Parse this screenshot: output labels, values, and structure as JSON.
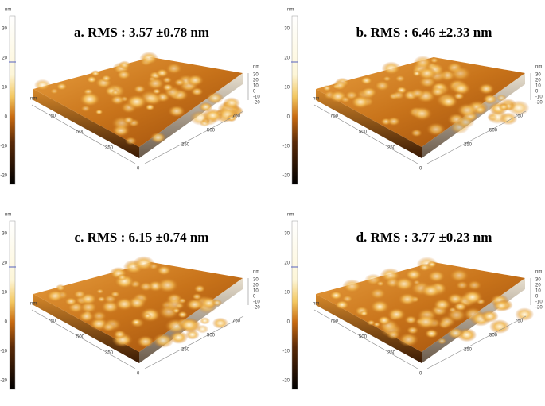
{
  "panels": [
    {
      "title": "a. RMS : 3.57 ±0.78 nm",
      "colorbar": {
        "unit": "nm",
        "ticks": [
          "30",
          "20",
          "10",
          "0",
          "-10",
          "-20"
        ]
      },
      "axes": {
        "unit": "nm",
        "origin": "0",
        "left_ticks": [
          "750",
          "500",
          "250"
        ],
        "right_ticks": [
          "250",
          "500",
          "750"
        ],
        "z_ticks": [
          "30",
          "20",
          "10",
          "0",
          "-10",
          "-20"
        ]
      }
    },
    {
      "title": "b. RMS : 6.46 ±2.33 nm",
      "colorbar": {
        "unit": "nm",
        "ticks": [
          "30",
          "20",
          "10",
          "0",
          "-10",
          "-20"
        ]
      },
      "axes": {
        "unit": "nm",
        "origin": "0",
        "left_ticks": [
          "750",
          "500",
          "250"
        ],
        "right_ticks": [
          "250",
          "500",
          "750"
        ],
        "z_ticks": [
          "30",
          "20",
          "10",
          "0",
          "-10",
          "-20"
        ]
      }
    },
    {
      "title": "c. RMS : 6.15 ±0.74 nm",
      "colorbar": {
        "unit": "nm",
        "ticks": [
          "30",
          "20",
          "10",
          "0",
          "-10",
          "-20"
        ]
      },
      "axes": {
        "unit": "nm",
        "origin": "0",
        "left_ticks": [
          "750",
          "500",
          "250"
        ],
        "right_ticks": [
          "250",
          "500",
          "750"
        ],
        "z_ticks": [
          "30",
          "20",
          "10",
          "0",
          "-10",
          "-20"
        ]
      }
    },
    {
      "title": "d. RMS : 3.77 ±0.23 nm",
      "colorbar": {
        "unit": "nm",
        "ticks": [
          "30",
          "20",
          "10",
          "0",
          "-10",
          "-20"
        ]
      },
      "axes": {
        "unit": "nm",
        "origin": "0",
        "left_ticks": [
          "750",
          "500",
          "250"
        ],
        "right_ticks": [
          "250",
          "500",
          "750"
        ],
        "z_ticks": [
          "30",
          "20",
          "10",
          "0",
          "-10",
          "-20"
        ]
      }
    }
  ]
}
